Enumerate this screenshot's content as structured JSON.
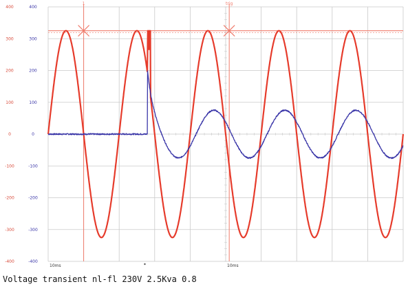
{
  "caption": "Voltage transient nl-fl 230V 2.5Kva 0.8",
  "colors": {
    "voltage": "#e63b2b",
    "current": "#3a36a8",
    "grid": "#c9c9c9",
    "cursor": "#f07a6a",
    "voltage_ticks": "#d84a3a",
    "current_ticks": "#3a36a8",
    "background": "#ffffff"
  },
  "chart_data": {
    "type": "line",
    "title": "",
    "xlabel": "",
    "ylabel": "",
    "grid": true,
    "legend": "none",
    "time_units": "ms",
    "xlim": [
      0,
      100
    ],
    "ylim_voltage": [
      -400,
      400
    ],
    "ylim_current": [
      -400,
      400
    ],
    "voltage_tick_labels": [
      "400",
      "300",
      "200",
      "100",
      "0",
      "-100",
      "-200",
      "-300",
      "-400"
    ],
    "current_tick_labels": [
      "400",
      "300",
      "200",
      "100",
      "0",
      "-100",
      "-200",
      "-300",
      "-400"
    ],
    "x_annotations": [
      {
        "label": "10ms",
        "x": 0
      },
      {
        "label": "10ms",
        "x": 50
      }
    ],
    "top_markers": [
      {
        "label": "1",
        "x": 10
      },
      {
        "label": "trig",
        "x": 51
      }
    ],
    "cursor_level_v": 325,
    "series": [
      {
        "role": "voltage",
        "amplitude": 325,
        "frequency_hz": 50,
        "phase_deg": 0,
        "transient": {
          "at_ms": 28,
          "peak": 325,
          "width_ms": 0.8
        }
      },
      {
        "role": "current",
        "before_value": 0,
        "step_at_ms": 28,
        "spike_peak": 200,
        "spike_settle": 60,
        "amplitude_after": 75,
        "lag_deg": 30,
        "noise": 4
      }
    ]
  }
}
